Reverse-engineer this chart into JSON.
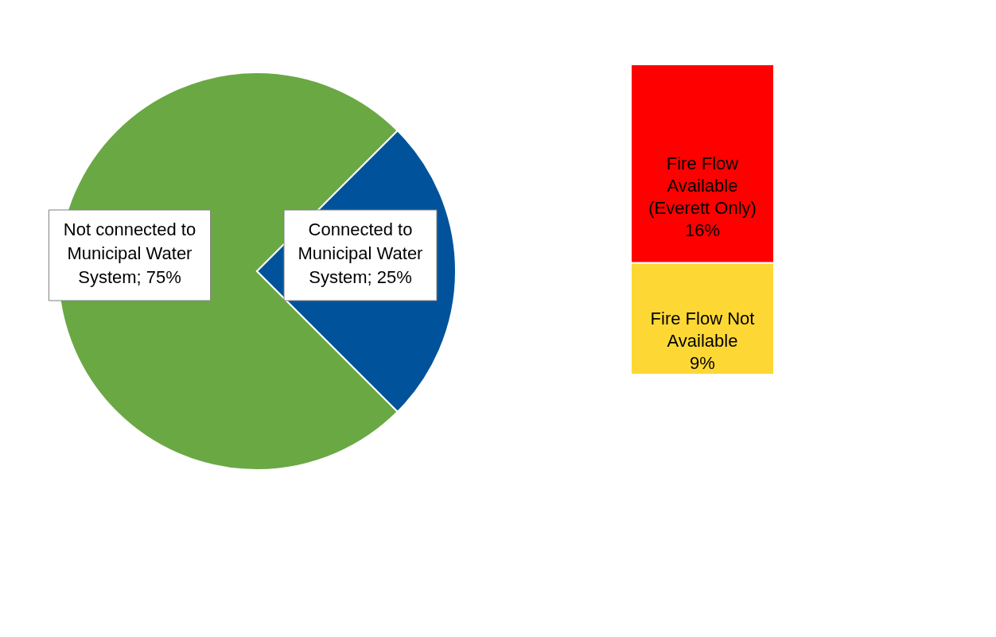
{
  "chart_data": [
    {
      "type": "pie",
      "categories": [
        "Not connected to Municipal Water System",
        "Connected to Municipal Water System"
      ],
      "values": [
        75,
        25
      ],
      "colors": [
        "#6aa844",
        "#00539b"
      ],
      "value_labels": [
        "75%",
        "25%"
      ],
      "legend": false
    },
    {
      "type": "bar",
      "stacked": true,
      "categories": [
        null
      ],
      "legend": false,
      "series": [
        {
          "name": "Fire Flow Not Available",
          "color": "#fdd835",
          "values": [
            9
          ],
          "value_labels": [
            "9%"
          ]
        },
        {
          "name": "Fire Flow Available (Everett Only)",
          "color": "#ff0000",
          "values": [
            16
          ],
          "value_labels": [
            "16%"
          ]
        }
      ]
    }
  ]
}
